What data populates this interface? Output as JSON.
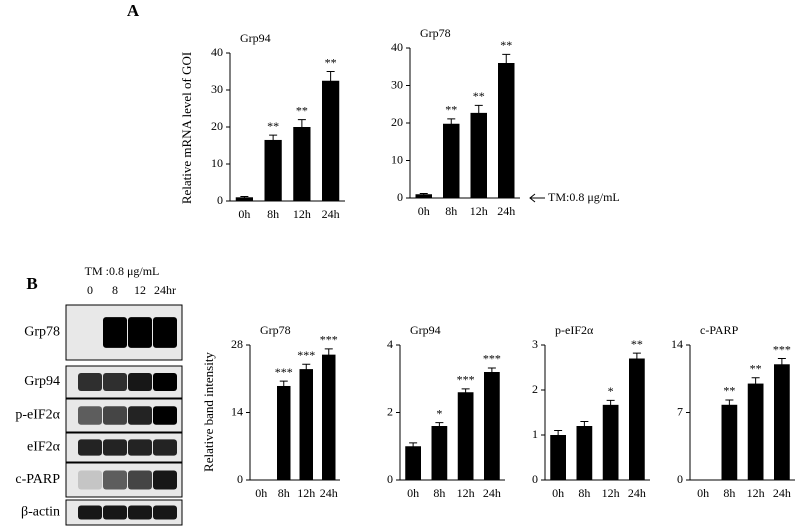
{
  "panels": [
    {
      "label": "A",
      "y_label": "Relative mRNA level of GOI",
      "note": "TM:0.8 μg/mL"
    },
    {
      "label": "B",
      "y_label": "Relative band intensity"
    }
  ],
  "blot": {
    "treatment": "TM :0.8 μg/mL",
    "lanes": [
      "0",
      "8",
      "12",
      "24hr"
    ],
    "bands": [
      "Grp78",
      "Grp94",
      "p-eIF2α",
      "eIF2α",
      "c-PARP",
      "β-actin"
    ]
  },
  "chart_data": [
    {
      "type": "bar",
      "title": "Grp94",
      "categories": [
        "0h",
        "8h",
        "12h",
        "24h"
      ],
      "values": [
        1,
        16.5,
        20,
        32.5
      ],
      "errors": [
        0.2,
        1.3,
        2,
        2.5
      ],
      "annotations": [
        null,
        "**",
        "**",
        "**"
      ],
      "color": "#000000",
      "ylim": [
        0,
        40
      ],
      "yticks": [
        0,
        10,
        20,
        30,
        40
      ]
    },
    {
      "type": "bar",
      "title": "Grp78",
      "categories": [
        "0h",
        "8h",
        "12h",
        "24h"
      ],
      "values": [
        1,
        19.8,
        22.7,
        36
      ],
      "errors": [
        0.2,
        1.3,
        2,
        2.3
      ],
      "annotations": [
        null,
        "**",
        "**",
        "**"
      ],
      "color": "#000000",
      "ylim": [
        0,
        40
      ],
      "yticks": [
        0,
        10,
        20,
        30,
        40
      ]
    },
    {
      "type": "bar",
      "title": "Grp78",
      "categories": [
        "0h",
        "8h",
        "12h",
        "24h"
      ],
      "values": [
        0,
        19.5,
        23,
        26
      ],
      "errors": [
        0,
        1,
        1,
        1.2
      ],
      "annotations": [
        null,
        "***",
        "***",
        "***"
      ],
      "color": "#000000",
      "ylim": [
        0,
        28
      ],
      "yticks": [
        0,
        14,
        28
      ]
    },
    {
      "type": "bar",
      "title": "Grp94",
      "categories": [
        "0h",
        "8h",
        "12h",
        "24h"
      ],
      "values": [
        1,
        1.6,
        2.6,
        3.2
      ],
      "errors": [
        0.1,
        0.1,
        0.1,
        0.12
      ],
      "annotations": [
        null,
        "*",
        "***",
        "***"
      ],
      "color": "#000000",
      "ylim": [
        0,
        4
      ],
      "yticks": [
        0,
        2,
        4
      ]
    },
    {
      "type": "bar",
      "title": "p-eIF2α",
      "categories": [
        "0h",
        "8h",
        "12h",
        "24h"
      ],
      "values": [
        1,
        1.2,
        1.67,
        2.7
      ],
      "errors": [
        0.1,
        0.1,
        0.1,
        0.12
      ],
      "annotations": [
        null,
        null,
        "*",
        "**"
      ],
      "color": "#000000",
      "ylim": [
        0,
        3
      ],
      "yticks": [
        0,
        1,
        2,
        3
      ]
    },
    {
      "type": "bar",
      "title": "c-PARP",
      "categories": [
        "0h",
        "8h",
        "12h",
        "24h"
      ],
      "values": [
        0,
        7.8,
        10,
        12
      ],
      "errors": [
        0,
        0.5,
        0.6,
        0.6
      ],
      "annotations": [
        null,
        "**",
        "**",
        "***"
      ],
      "color": "#000000",
      "ylim": [
        0,
        14
      ],
      "yticks": [
        0,
        7,
        14
      ]
    }
  ]
}
